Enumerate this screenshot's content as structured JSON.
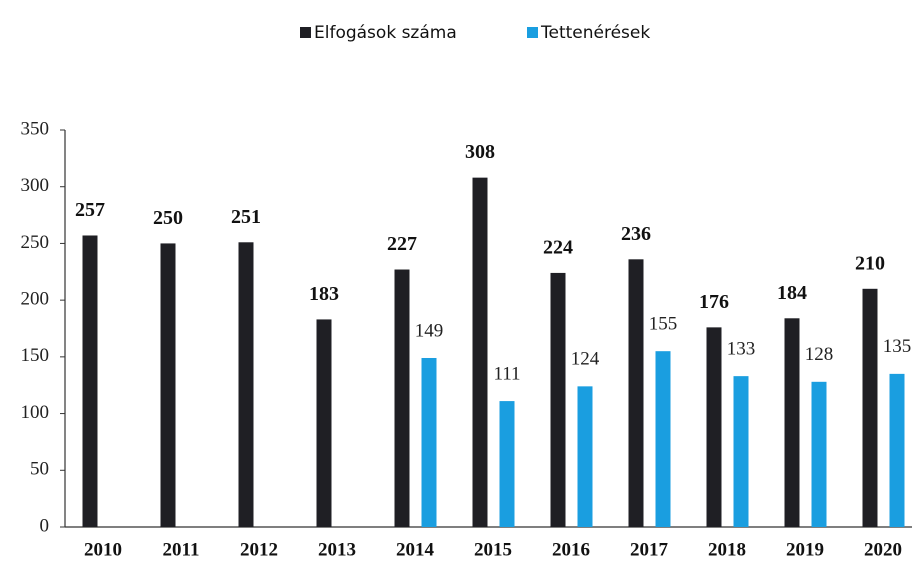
{
  "chart_data": {
    "type": "bar",
    "categories": [
      "2010",
      "2011",
      "2012",
      "2013",
      "2014",
      "2015",
      "2016",
      "2017",
      "2018",
      "2019",
      "2020"
    ],
    "series": [
      {
        "name": "Elfogások száma",
        "color": "#1f1f24",
        "values": [
          257,
          250,
          251,
          183,
          227,
          308,
          224,
          236,
          176,
          184,
          210
        ]
      },
      {
        "name": "Tettenérések",
        "color": "#1a9ee0",
        "values": [
          null,
          null,
          null,
          null,
          149,
          111,
          124,
          155,
          133,
          128,
          135
        ]
      }
    ],
    "ylim": [
      0,
      350
    ],
    "yticks": [
      0,
      50,
      100,
      150,
      200,
      250,
      300,
      350
    ]
  }
}
